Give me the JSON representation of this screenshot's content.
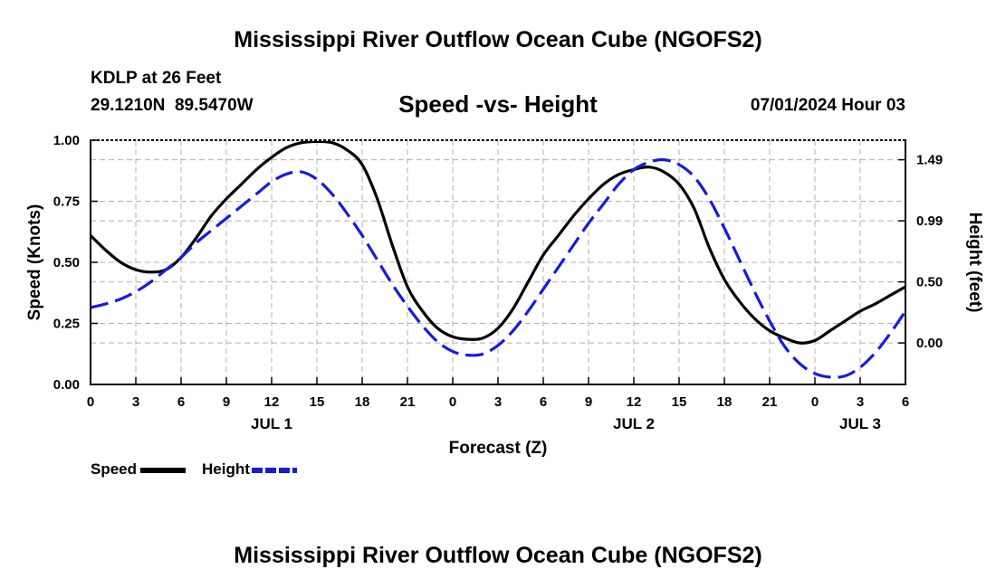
{
  "page_title": "Mississippi River Outflow Ocean Cube (NGOFS2)",
  "footer_title": "Mississippi River Outflow Ocean Cube (NGOFS2)",
  "station": {
    "name_line": "KDLP at 26 Feet",
    "coords_line": "29.1210N  89.5470W"
  },
  "forecast_time": "07/01/2024 Hour 03",
  "legend": {
    "speed_label": "Speed",
    "height_label": "Height"
  },
  "colors": {
    "speed": "#000000",
    "height": "#1a1adc",
    "grid": "#b0b0b0"
  },
  "chart_data": {
    "type": "line",
    "title": "Speed -vs- Height",
    "xlabel": "Forecast (Z)",
    "ylabel": "Speed (Knots)",
    "y2label": "Height (feet)",
    "x_unit": "forecast hours",
    "xlim": [
      0,
      54
    ],
    "ylim": [
      0,
      1
    ],
    "y_ticks": [
      0,
      0.25,
      0.5,
      0.75,
      1.0
    ],
    "y_tick_labels": [
      "0.00",
      "0.25",
      "0.50",
      "0.75",
      "1.00"
    ],
    "y2_ticks": [
      {
        "label": "0.00",
        "speed_equiv": 0.17
      },
      {
        "label": "0.50",
        "speed_equiv": 0.42
      },
      {
        "label": "0.99",
        "speed_equiv": 0.67
      },
      {
        "label": "1.49",
        "speed_equiv": 0.92
      }
    ],
    "x_ticks": [
      0,
      3,
      6,
      9,
      12,
      15,
      18,
      21,
      24,
      27,
      30,
      33,
      36,
      39,
      42,
      45,
      48,
      51,
      54
    ],
    "x_tick_labels": [
      "0",
      "3",
      "6",
      "9",
      "12",
      "15",
      "18",
      "21",
      "0",
      "3",
      "6",
      "9",
      "12",
      "15",
      "18",
      "21",
      "0",
      "3",
      "6"
    ],
    "day_labels": [
      {
        "label": "JUL 1",
        "x": 12
      },
      {
        "label": "JUL 2",
        "x": 36
      },
      {
        "label": "JUL 3",
        "x": 51
      }
    ],
    "series": [
      {
        "name": "Speed",
        "axis": "left",
        "style": "solid",
        "points": [
          [
            0,
            0.61
          ],
          [
            1,
            0.55
          ],
          [
            2,
            0.5
          ],
          [
            3,
            0.47
          ],
          [
            4,
            0.46
          ],
          [
            5,
            0.47
          ],
          [
            6,
            0.52
          ],
          [
            7,
            0.6
          ],
          [
            8,
            0.69
          ],
          [
            9,
            0.76
          ],
          [
            10,
            0.82
          ],
          [
            11,
            0.88
          ],
          [
            12,
            0.93
          ],
          [
            13,
            0.97
          ],
          [
            14,
            0.99
          ],
          [
            15,
            0.995
          ],
          [
            16,
            0.99
          ],
          [
            17,
            0.96
          ],
          [
            18,
            0.9
          ],
          [
            19,
            0.76
          ],
          [
            20,
            0.57
          ],
          [
            21,
            0.4
          ],
          [
            22,
            0.3
          ],
          [
            23,
            0.23
          ],
          [
            24,
            0.195
          ],
          [
            25,
            0.185
          ],
          [
            26,
            0.19
          ],
          [
            27,
            0.23
          ],
          [
            28,
            0.31
          ],
          [
            29,
            0.42
          ],
          [
            30,
            0.53
          ],
          [
            31,
            0.61
          ],
          [
            32,
            0.69
          ],
          [
            33,
            0.76
          ],
          [
            34,
            0.82
          ],
          [
            35,
            0.86
          ],
          [
            36,
            0.88
          ],
          [
            37,
            0.89
          ],
          [
            38,
            0.87
          ],
          [
            39,
            0.82
          ],
          [
            40,
            0.72
          ],
          [
            41,
            0.56
          ],
          [
            42,
            0.43
          ],
          [
            43,
            0.34
          ],
          [
            44,
            0.27
          ],
          [
            45,
            0.22
          ],
          [
            46,
            0.19
          ],
          [
            47,
            0.17
          ],
          [
            48,
            0.18
          ],
          [
            49,
            0.22
          ],
          [
            50,
            0.26
          ],
          [
            51,
            0.3
          ],
          [
            52,
            0.33
          ],
          [
            53,
            0.365
          ],
          [
            54,
            0.4
          ]
        ]
      },
      {
        "name": "Height",
        "axis": "right",
        "style": "dashed",
        "points": [
          [
            0,
            0.315
          ],
          [
            1,
            0.33
          ],
          [
            2,
            0.35
          ],
          [
            3,
            0.38
          ],
          [
            4,
            0.42
          ],
          [
            5,
            0.47
          ],
          [
            6,
            0.52
          ],
          [
            7,
            0.58
          ],
          [
            8,
            0.63
          ],
          [
            9,
            0.68
          ],
          [
            10,
            0.73
          ],
          [
            11,
            0.78
          ],
          [
            12,
            0.83
          ],
          [
            13,
            0.862
          ],
          [
            14,
            0.87
          ],
          [
            15,
            0.84
          ],
          [
            16,
            0.78
          ],
          [
            17,
            0.7
          ],
          [
            18,
            0.61
          ],
          [
            19,
            0.51
          ],
          [
            20,
            0.41
          ],
          [
            21,
            0.32
          ],
          [
            22,
            0.24
          ],
          [
            23,
            0.175
          ],
          [
            24,
            0.135
          ],
          [
            25,
            0.12
          ],
          [
            26,
            0.125
          ],
          [
            27,
            0.16
          ],
          [
            28,
            0.22
          ],
          [
            29,
            0.3
          ],
          [
            30,
            0.39
          ],
          [
            31,
            0.48
          ],
          [
            32,
            0.57
          ],
          [
            33,
            0.66
          ],
          [
            34,
            0.74
          ],
          [
            35,
            0.82
          ],
          [
            36,
            0.88
          ],
          [
            37,
            0.91
          ],
          [
            38,
            0.92
          ],
          [
            39,
            0.9
          ],
          [
            40,
            0.85
          ],
          [
            41,
            0.76
          ],
          [
            42,
            0.64
          ],
          [
            43,
            0.51
          ],
          [
            44,
            0.38
          ],
          [
            45,
            0.26
          ],
          [
            46,
            0.155
          ],
          [
            47,
            0.085
          ],
          [
            48,
            0.045
          ],
          [
            49,
            0.03
          ],
          [
            50,
            0.035
          ],
          [
            51,
            0.07
          ],
          [
            52,
            0.13
          ],
          [
            53,
            0.21
          ],
          [
            54,
            0.3
          ]
        ]
      }
    ]
  }
}
